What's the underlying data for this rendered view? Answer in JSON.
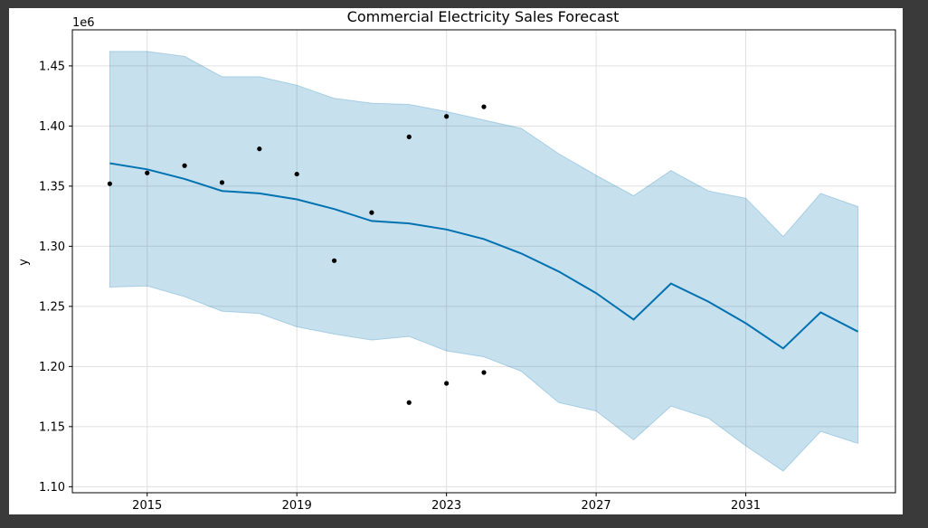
{
  "chart_data": {
    "type": "line",
    "title": "Commercial Electricity Sales Forecast",
    "xlabel": "",
    "ylabel": "y",
    "y_offset_label": "1e6",
    "xlim": [
      2013.0,
      2035.0
    ],
    "ylim": [
      1.095,
      1.48
    ],
    "x_ticks": [
      2015,
      2019,
      2023,
      2027,
      2031
    ],
    "y_ticks": [
      1.1,
      1.15,
      1.2,
      1.25,
      1.3,
      1.35,
      1.4,
      1.45
    ],
    "y_tick_labels": [
      "1.10",
      "1.15",
      "1.20",
      "1.25",
      "1.30",
      "1.35",
      "1.40",
      "1.45"
    ],
    "grid": true,
    "colors": {
      "forecast_line": "#0072b2",
      "interval_fill": "#0072b2",
      "points": "#000000"
    },
    "x": [
      2014.0,
      2015.0,
      2016.0,
      2017.0,
      2018.0,
      2019.0,
      2020.0,
      2021.0,
      2022.0,
      2023.0,
      2024.0,
      2025.0,
      2026.0,
      2027.0,
      2028.0,
      2029.0,
      2030.0,
      2031.0,
      2032.0,
      2033.0,
      2034.0
    ],
    "series": [
      {
        "values": [
          1.369,
          1.364,
          1.356,
          1.346,
          1.344,
          1.339,
          1.331,
          1.321,
          1.319,
          1.314,
          1.306,
          1.294,
          1.279,
          1.261,
          1.239,
          1.269,
          1.254,
          1.236,
          1.215,
          1.245,
          1.229
        ]
      },
      {
        "values": [
          1.266,
          1.267,
          1.258,
          1.246,
          1.244,
          1.233,
          1.227,
          1.222,
          1.225,
          1.213,
          1.208,
          1.196,
          1.17,
          1.163,
          1.139,
          1.167,
          1.157,
          1.134,
          1.113,
          1.146,
          1.136
        ]
      },
      {
        "values": [
          1.462,
          1.462,
          1.458,
          1.441,
          1.441,
          1.434,
          1.423,
          1.419,
          1.418,
          1.412,
          1.405,
          1.398,
          1.377,
          1.359,
          1.342,
          1.363,
          1.346,
          1.34,
          1.308,
          1.344,
          1.333
        ]
      }
    ],
    "observations": {
      "x": [
        2014.0,
        2015.0,
        2016.0,
        2017.0,
        2018.0,
        2019.0,
        2020.0,
        2021.0,
        2022.0,
        2022.0,
        2023.0,
        2023.0,
        2024.0,
        2024.0
      ],
      "y": [
        1.352,
        1.361,
        1.367,
        1.353,
        1.381,
        1.36,
        1.288,
        1.328,
        1.391,
        1.17,
        1.408,
        1.186,
        1.416,
        1.195
      ]
    }
  }
}
